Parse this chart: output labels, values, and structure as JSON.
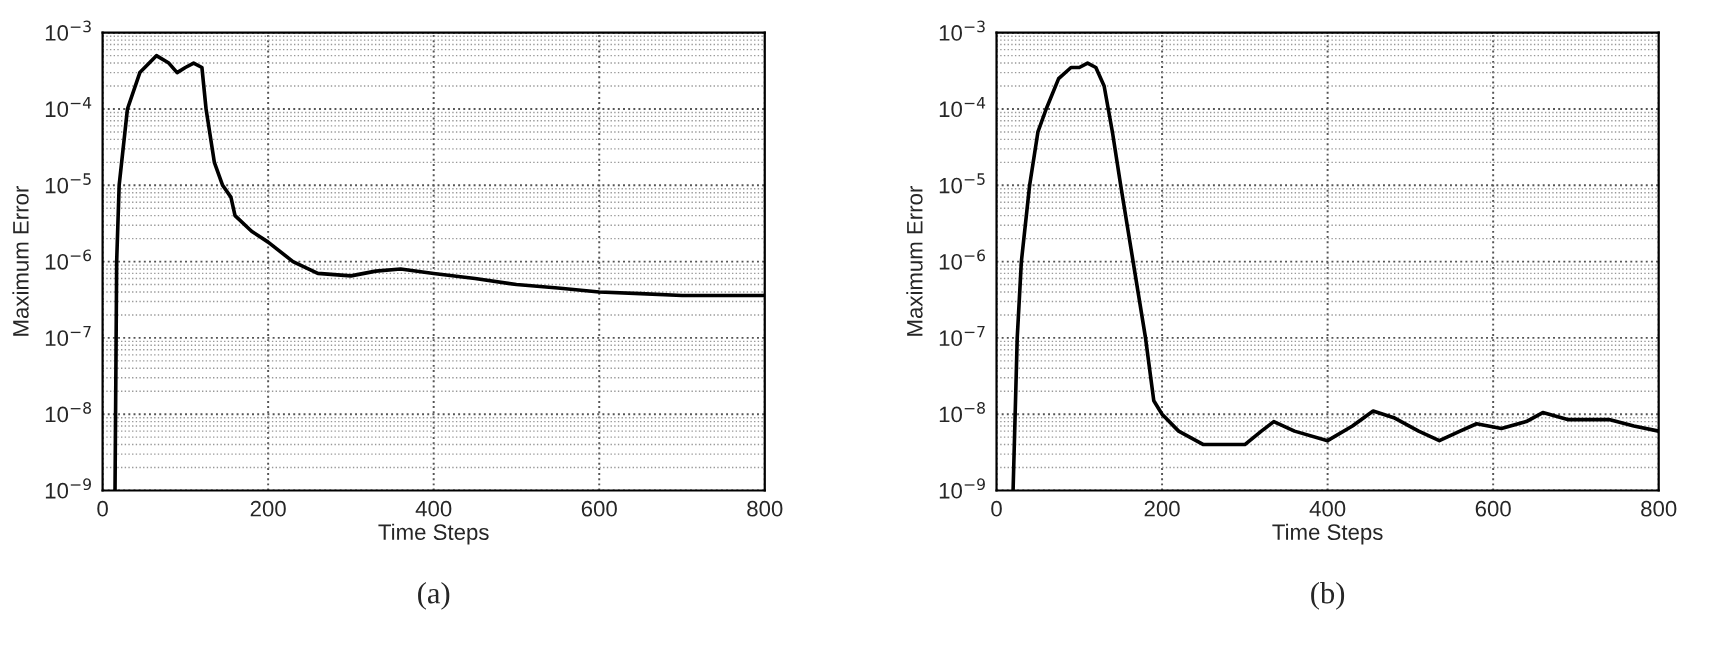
{
  "chart_data": [
    {
      "type": "line",
      "title": "(a)",
      "xlabel": "Time Steps",
      "ylabel": "Maximum Error",
      "log": "y",
      "grid": true,
      "xlim": [
        0,
        800
      ],
      "xticks": [
        0,
        200,
        400,
        600,
        800
      ],
      "ylim": [
        1e-09,
        0.001
      ],
      "yticks": [
        {
          "value": 1e-09,
          "label": "10$^{−9}$"
        },
        {
          "value": 1e-08,
          "label": "10$^{−8}$"
        },
        {
          "value": 1e-07,
          "label": "10$^{−7}$"
        },
        {
          "value": 1e-06,
          "label": "10$^{−6}$"
        },
        {
          "value": 1e-05,
          "label": "10$^{−5}$"
        },
        {
          "value": 0.0001,
          "label": "10$^{−4}$"
        },
        {
          "value": 0.001,
          "label": "10$^{−3}$"
        }
      ],
      "series": [
        {
          "color": "#000000",
          "x": [
            15,
            17,
            20,
            30,
            45,
            65,
            80,
            90,
            100,
            110,
            120,
            125,
            135,
            145,
            155,
            160,
            180,
            200,
            230,
            260,
            300,
            330,
            360,
            400,
            450,
            500,
            550,
            600,
            650,
            700,
            750,
            800
          ],
          "values": [
            1e-09,
            1e-06,
            1e-05,
            0.0001,
            0.0003,
            0.0005,
            0.0004,
            0.0003,
            0.00035,
            0.0004,
            0.00035,
            0.0001,
            2e-05,
            1e-05,
            7e-06,
            4e-06,
            2.5e-06,
            1.8e-06,
            1e-06,
            7e-07,
            6.5e-07,
            7.5e-07,
            8e-07,
            7e-07,
            6e-07,
            5e-07,
            4.5e-07,
            4e-07,
            3.8e-07,
            3.6e-07,
            3.6e-07,
            3.6e-07
          ]
        }
      ]
    },
    {
      "type": "line",
      "title": "(b)",
      "xlabel": "Time Steps",
      "ylabel": "Maximum Error",
      "log": "y",
      "grid": true,
      "xlim": [
        0,
        800
      ],
      "xticks": [
        0,
        200,
        400,
        600,
        800
      ],
      "ylim": [
        1e-09,
        0.001
      ],
      "yticks": [
        {
          "value": 1e-09,
          "label": "10$^{−9}$"
        },
        {
          "value": 1e-08,
          "label": "10$^{−8}$"
        },
        {
          "value": 1e-07,
          "label": "10$^{−7}$"
        },
        {
          "value": 1e-06,
          "label": "10$^{−6}$"
        },
        {
          "value": 1e-05,
          "label": "10$^{−5}$"
        },
        {
          "value": 0.0001,
          "label": "10$^{−4}$"
        },
        {
          "value": 0.001,
          "label": "10$^{−3}$"
        }
      ],
      "series": [
        {
          "color": "#000000",
          "x": [
            20,
            25,
            30,
            40,
            50,
            60,
            75,
            90,
            100,
            110,
            120,
            130,
            140,
            150,
            165,
            180,
            190,
            200,
            220,
            250,
            300,
            320,
            335,
            360,
            400,
            430,
            455,
            480,
            510,
            535,
            560,
            580,
            610,
            640,
            660,
            690,
            740,
            770,
            800
          ],
          "values": [
            1e-09,
            1e-07,
            1e-06,
            1e-05,
            5e-05,
            0.0001,
            0.00025,
            0.00035,
            0.00035,
            0.0004,
            0.00035,
            0.0002,
            5e-05,
            1e-05,
            1e-06,
            1e-07,
            1.5e-08,
            1e-08,
            6e-09,
            4e-09,
            4e-09,
            6e-09,
            8e-09,
            6e-09,
            4.5e-09,
            7e-09,
            1.1e-08,
            9e-09,
            6e-09,
            4.5e-09,
            6e-09,
            7.5e-09,
            6.5e-09,
            8e-09,
            1.05e-08,
            8.5e-09,
            8.5e-09,
            7e-09,
            6e-09
          ]
        }
      ]
    }
  ]
}
